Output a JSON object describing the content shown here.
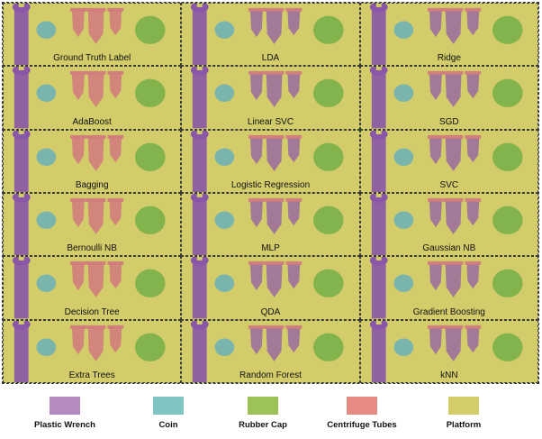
{
  "panels": [
    "Ground Truth Label",
    "LDA",
    "Ridge",
    "AdaBoost",
    "Linear SVC",
    "SGD",
    "Bagging",
    "Logistic Regression",
    "SVC",
    "Bernoulli NB",
    "MLP",
    "Gaussian NB",
    "Decision Tree",
    "QDA",
    "Gradient Boosting",
    "Extra Trees",
    "Random Forest",
    "kNN"
  ],
  "legend": [
    {
      "label": "Plastic Wrench",
      "color": "#b58ac0"
    },
    {
      "label": "Coin",
      "color": "#7ec4c0"
    },
    {
      "label": "Rubber Cap",
      "color": "#9dc25a"
    },
    {
      "label": "Centrifuge Tubes",
      "color": "#e58b84"
    },
    {
      "label": "Platform",
      "color": "#d3cc6a"
    }
  ],
  "colors": {
    "wrench": "#8a56a8",
    "coin": "#6fb3b5",
    "cap": "#79b04a",
    "tube": "#d0787e",
    "tube_mixed": "#9a6aa0",
    "platform": "#d3cc6a"
  }
}
